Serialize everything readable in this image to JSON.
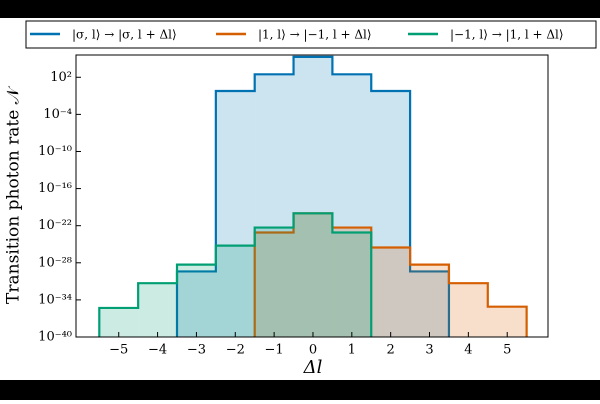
{
  "chart_data": {
    "type": "histogram",
    "xlabel": "Δl",
    "ylabel": "Transition photon rate 𝒩",
    "log_y": true,
    "xlim": [
      -6.1,
      6.05
    ],
    "ylim": [
      1e-40,
      400000.0
    ],
    "xticks": [
      {
        "value": -5,
        "label": "−5"
      },
      {
        "value": -4,
        "label": "−4"
      },
      {
        "value": -3,
        "label": "−3"
      },
      {
        "value": -2,
        "label": "−2"
      },
      {
        "value": -1,
        "label": "−1"
      },
      0,
      1,
      2,
      3,
      4,
      5
    ],
    "yticks": [
      {
        "value": 100.0,
        "label": "10²"
      },
      {
        "value": 0.0001,
        "label": "10⁻⁴"
      },
      {
        "value": 1e-10,
        "label": "10⁻¹⁰"
      },
      {
        "value": 1e-16,
        "label": "10⁻¹⁶"
      },
      {
        "value": 1e-22,
        "label": "10⁻²²"
      },
      {
        "value": 1e-28,
        "label": "10⁻²⁸"
      },
      {
        "value": 1e-34,
        "label": "10⁻³⁴"
      },
      {
        "value": 1e-40,
        "label": "10⁻⁴⁰"
      }
    ],
    "series": [
      {
        "name": "|σ, l⟩ → |σ, l + Δl⟩",
        "color": "#0072b2",
        "bins": [
          -3.5,
          -2.5,
          -1.5,
          -0.5,
          0.5,
          1.5,
          2.5,
          3.5
        ],
        "values": [
          4e-30,
          0.6,
          300,
          200000.0,
          300,
          0.6,
          4e-30
        ]
      },
      {
        "name": "|1, l⟩ → |−1, l + Δl⟩",
        "color": "#d55e00",
        "bins": [
          -1.5,
          -0.5,
          0.5,
          1.5,
          2.5,
          3.5,
          4.5,
          5.5
        ],
        "values": [
          8e-24,
          1e-20,
          5e-23,
          3e-26,
          5e-29,
          5e-32,
          8e-36
        ]
      },
      {
        "name": "|−1, l⟩ → |1, l + Δl⟩",
        "color": "#009e73",
        "bins": [
          -5.5,
          -4.5,
          -3.5,
          -2.5,
          -1.5,
          -0.5,
          0.5,
          1.5
        ],
        "values": [
          5e-36,
          5e-32,
          5e-29,
          6e-26,
          5e-23,
          1e-20,
          8e-24
        ]
      }
    ]
  }
}
